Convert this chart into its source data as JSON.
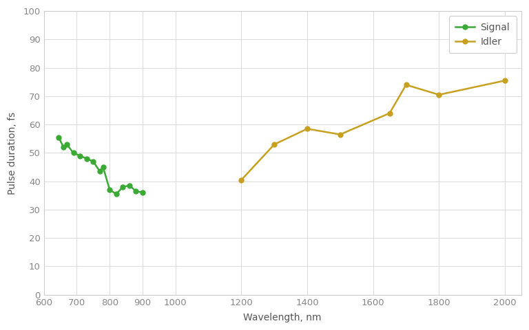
{
  "signal_x": [
    645,
    660,
    670,
    690,
    710,
    730,
    750,
    770,
    780,
    800,
    820,
    840,
    860,
    880,
    900
  ],
  "signal_y": [
    55.5,
    52.0,
    53.0,
    50.0,
    49.0,
    48.0,
    47.0,
    43.5,
    45.0,
    37.0,
    35.5,
    38.0,
    38.5,
    36.5,
    36.0
  ],
  "idler_x": [
    1200,
    1300,
    1400,
    1500,
    1650,
    1700,
    1800,
    2000
  ],
  "idler_y": [
    40.5,
    53.0,
    58.5,
    56.5,
    64.0,
    74.0,
    70.5,
    75.5
  ],
  "signal_color": "#3aaa35",
  "idler_color": "#c8a020",
  "marker_style": "o",
  "marker_size": 5,
  "linewidth": 1.8,
  "xlabel": "Wavelength, nm",
  "ylabel": "Pulse duration, fs",
  "xlim": [
    600,
    2050
  ],
  "ylim": [
    0,
    100
  ],
  "xticks": [
    600,
    700,
    800,
    900,
    1000,
    1200,
    1400,
    1600,
    1800,
    2000
  ],
  "yticks": [
    0,
    10,
    20,
    30,
    40,
    50,
    60,
    70,
    80,
    90,
    100
  ],
  "legend_signal": "Signal",
  "legend_idler": "Idler",
  "plot_bg_color": "#ffffff",
  "fig_bg_color": "#ffffff",
  "grid_color": "#dddddd"
}
